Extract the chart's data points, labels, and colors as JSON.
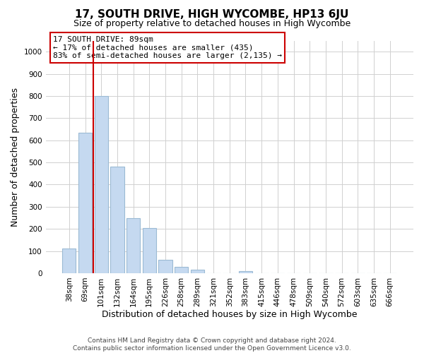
{
  "title": "17, SOUTH DRIVE, HIGH WYCOMBE, HP13 6JU",
  "subtitle": "Size of property relative to detached houses in High Wycombe",
  "xlabel": "Distribution of detached houses by size in High Wycombe",
  "ylabel": "Number of detached properties",
  "footer_line1": "Contains HM Land Registry data © Crown copyright and database right 2024.",
  "footer_line2": "Contains public sector information licensed under the Open Government Licence v3.0.",
  "bar_labels": [
    "38sqm",
    "69sqm",
    "101sqm",
    "132sqm",
    "164sqm",
    "195sqm",
    "226sqm",
    "258sqm",
    "289sqm",
    "321sqm",
    "352sqm",
    "383sqm",
    "415sqm",
    "446sqm",
    "478sqm",
    "509sqm",
    "540sqm",
    "572sqm",
    "603sqm",
    "635sqm",
    "666sqm"
  ],
  "bar_values": [
    110,
    635,
    800,
    480,
    250,
    205,
    60,
    30,
    15,
    0,
    0,
    10,
    0,
    0,
    0,
    0,
    0,
    0,
    0,
    0,
    0
  ],
  "bar_color": "#c5d9f0",
  "bar_edge_color": "#9bbad4",
  "vline_color": "#cc0000",
  "vline_index": 1.5,
  "annotation_line1": "17 SOUTH DRIVE: 89sqm",
  "annotation_line2": "← 17% of detached houses are smaller (435)",
  "annotation_line3": "83% of semi-detached houses are larger (2,135) →",
  "ylim": [
    0,
    1050
  ],
  "yticks": [
    0,
    100,
    200,
    300,
    400,
    500,
    600,
    700,
    800,
    900,
    1000
  ],
  "background_color": "#ffffff",
  "grid_color": "#d0d0d0",
  "title_fontsize": 11,
  "subtitle_fontsize": 9,
  "axis_label_fontsize": 9,
  "tick_fontsize": 7.5,
  "footer_fontsize": 6.5,
  "annotation_fontsize": 8
}
